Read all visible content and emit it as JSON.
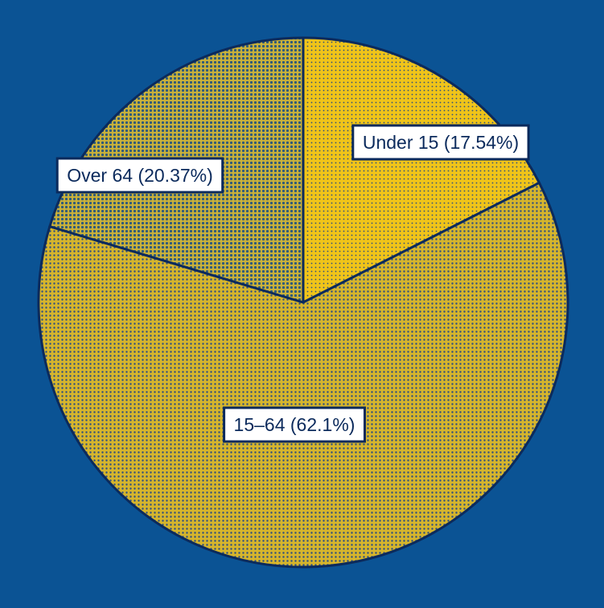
{
  "chart_data": {
    "type": "pie",
    "title": "",
    "categories": [
      "Under 15",
      "15–64",
      "Over 64"
    ],
    "values": [
      17.54,
      62.1,
      20.37
    ],
    "labels": [
      "Under 15 (17.54%)",
      "15–64 (62.1%)",
      "Over 64 (20.37%)"
    ],
    "start_angle_deg": 0,
    "direction": "clockwise",
    "legend": "none",
    "colors": {
      "background": "#0b5394",
      "slice_fill": [
        "#f0c419",
        "#d6b52c",
        "#8a8a4a"
      ],
      "pattern_dots": "#2f4f7f",
      "outline": "#0b2a5c",
      "label_box": "#ffffff",
      "label_text": "#0b2a5c"
    }
  }
}
